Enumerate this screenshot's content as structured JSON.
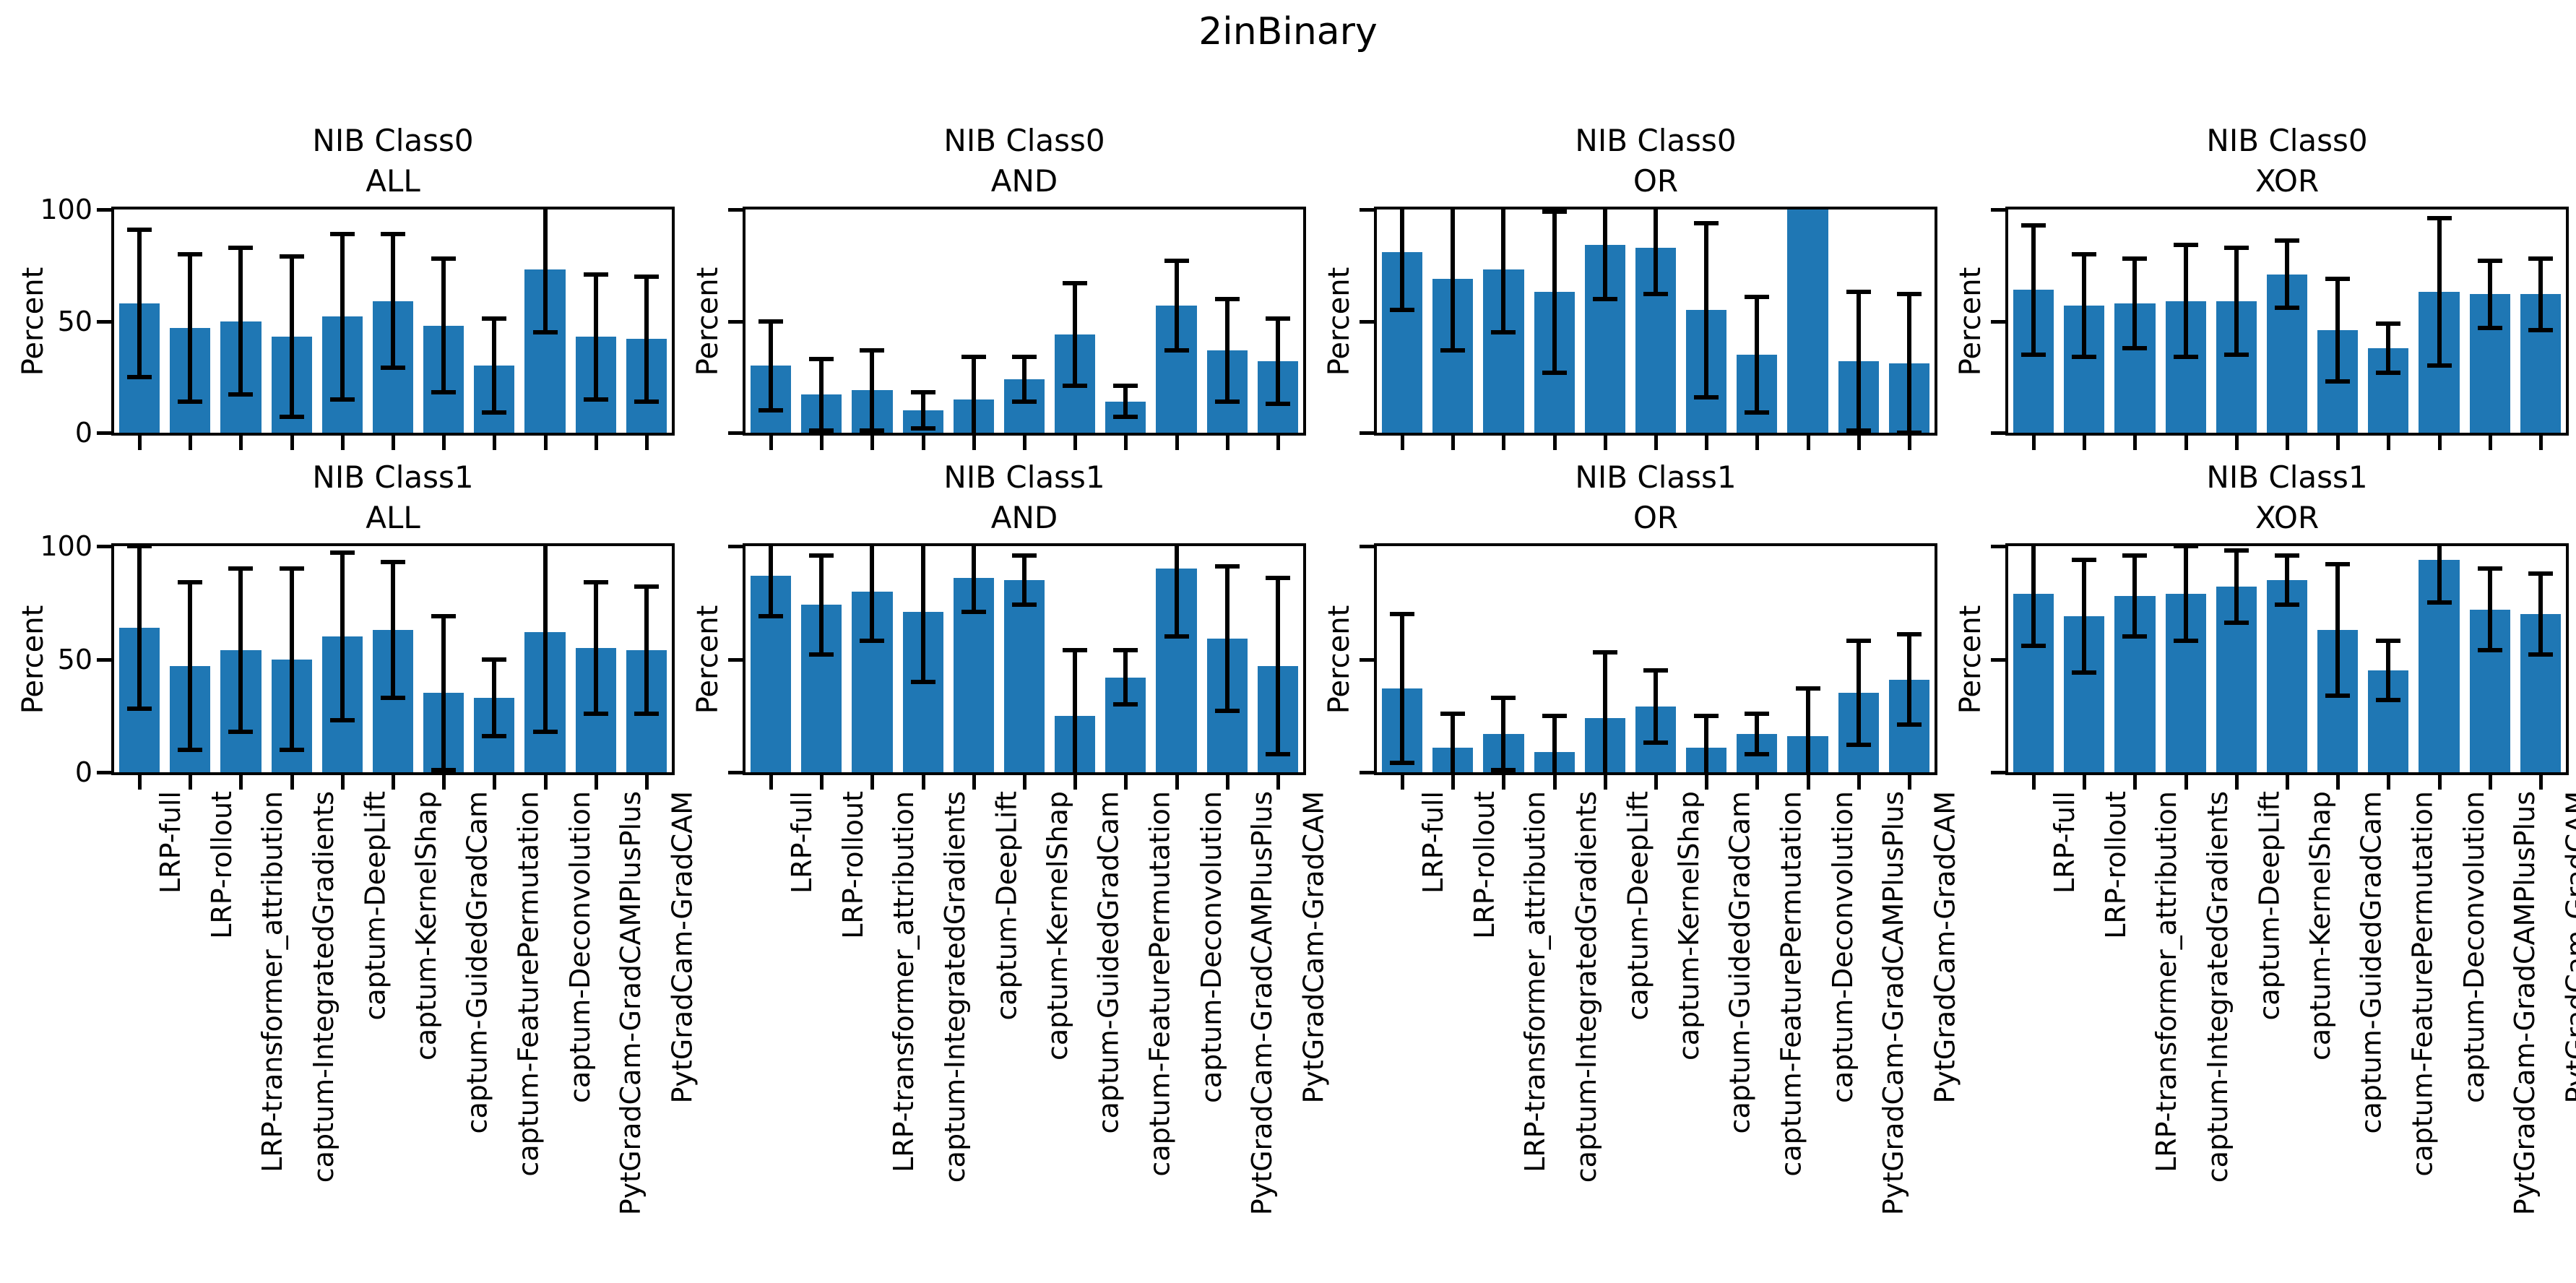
{
  "chart_data": {
    "type": "bar",
    "figure_title": "2inBinary",
    "ylabel": "Percent",
    "ylim": [
      0,
      100
    ],
    "yticks": [
      0,
      50,
      100
    ],
    "grid": false,
    "legend": "none",
    "bar_color": "#1f77b4",
    "error_color": "#000000",
    "categories": [
      "LRP-full",
      "LRP-rollout",
      "LRP-transformer_attribution",
      "captum-IntegratedGradients",
      "captum-DeepLift",
      "captum-KernelShap",
      "captum-GuidedGradCam",
      "captum-FeaturePermutation",
      "captum-Deconvolution",
      "PytGradCam-GradCAMPlusPlus",
      "PytGradCam-GradCAM"
    ],
    "subplots": [
      {
        "id": "class0-all",
        "title_line1": "NIB Class0",
        "title_line2": "ALL",
        "values": [
          58,
          47,
          50,
          43,
          52,
          59,
          48,
          30,
          73,
          43,
          42
        ],
        "errors": [
          33,
          33,
          33,
          36,
          37,
          30,
          30,
          21,
          28,
          28,
          28
        ]
      },
      {
        "id": "class0-and",
        "title_line1": "NIB Class0",
        "title_line2": "AND",
        "values": [
          30,
          17,
          19,
          10,
          15,
          24,
          44,
          14,
          57,
          37,
          32
        ],
        "errors": [
          20,
          16,
          18,
          8,
          19,
          10,
          23,
          7,
          20,
          23,
          19
        ]
      },
      {
        "id": "class0-or",
        "title_line1": "NIB Class0",
        "title_line2": "OR",
        "values": [
          81,
          69,
          73,
          63,
          84,
          83,
          55,
          35,
          100,
          32,
          31
        ],
        "errors": [
          26,
          32,
          28,
          36,
          24,
          21,
          39,
          26,
          0,
          31,
          31
        ]
      },
      {
        "id": "class0-xor",
        "title_line1": "NIB Class0",
        "title_line2": "XOR",
        "values": [
          64,
          57,
          58,
          59,
          59,
          71,
          46,
          38,
          63,
          62,
          62
        ],
        "errors": [
          29,
          23,
          20,
          25,
          24,
          15,
          23,
          11,
          33,
          15,
          16
        ]
      },
      {
        "id": "class1-all",
        "title_line1": "NIB Class1",
        "title_line2": "ALL",
        "values": [
          64,
          47,
          54,
          50,
          60,
          63,
          35,
          33,
          62,
          55,
          54
        ],
        "errors": [
          36,
          37,
          36,
          40,
          37,
          30,
          34,
          17,
          44,
          29,
          28
        ]
      },
      {
        "id": "class1-and",
        "title_line1": "NIB Class1",
        "title_line2": "AND",
        "values": [
          87,
          74,
          80,
          71,
          86,
          85,
          25,
          42,
          90,
          59,
          47
        ],
        "errors": [
          18,
          22,
          22,
          31,
          15,
          11,
          29,
          12,
          30,
          32,
          39
        ]
      },
      {
        "id": "class1-or",
        "title_line1": "NIB Class1",
        "title_line2": "OR",
        "values": [
          37,
          11,
          17,
          9,
          24,
          29,
          11,
          17,
          16,
          35,
          41
        ],
        "errors": [
          33,
          15,
          16,
          16,
          29,
          16,
          14,
          9,
          21,
          23,
          20
        ]
      },
      {
        "id": "class1-xor",
        "title_line1": "NIB Class1",
        "title_line2": "XOR",
        "values": [
          79,
          69,
          78,
          79,
          82,
          85,
          63,
          45,
          94,
          72,
          70
        ],
        "errors": [
          23,
          25,
          18,
          21,
          16,
          11,
          29,
          13,
          19,
          18,
          18
        ]
      }
    ]
  }
}
